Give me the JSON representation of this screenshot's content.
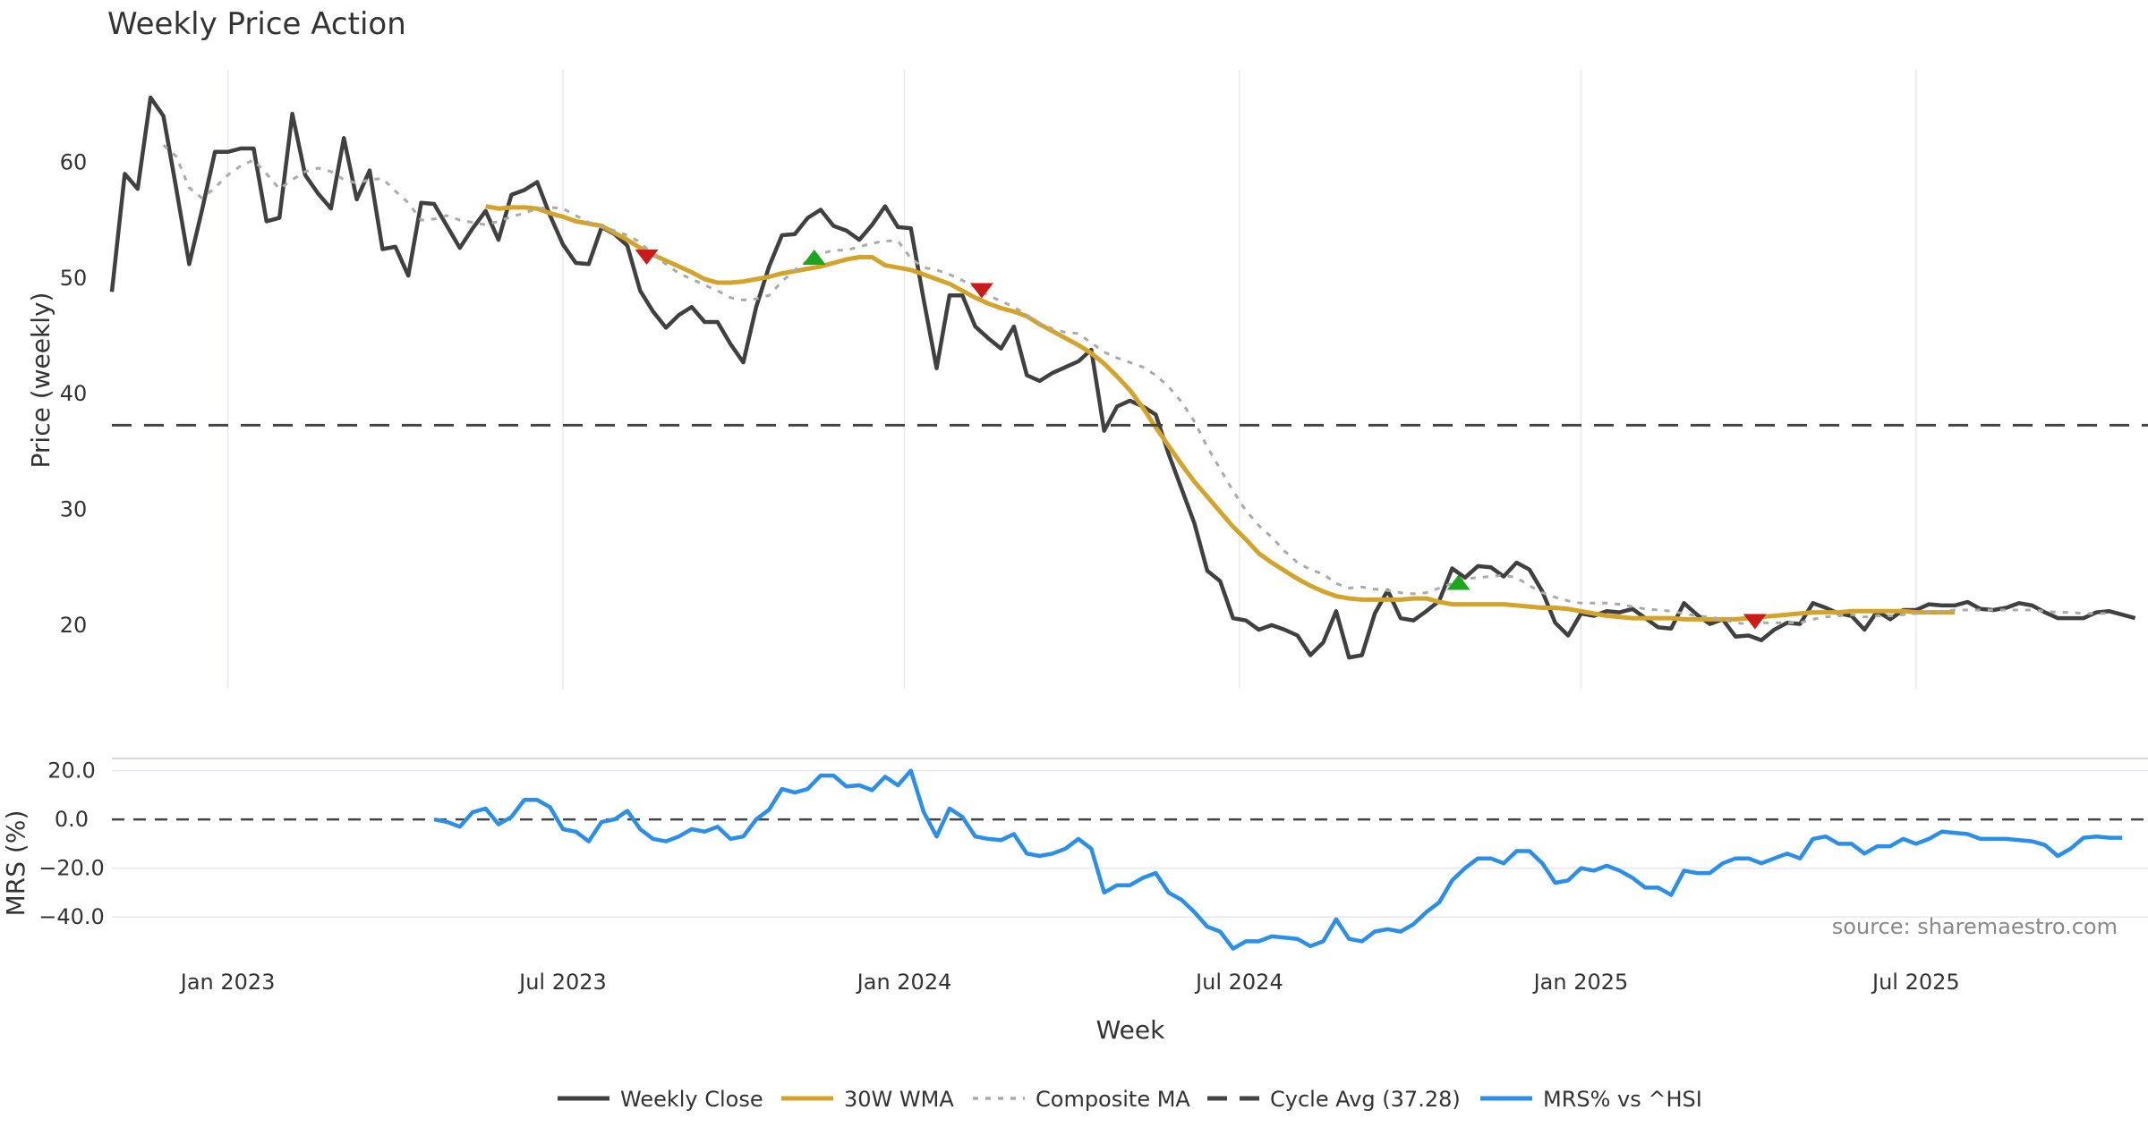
{
  "chart_data": [
    {
      "type": "line",
      "title": "Weekly Price Action",
      "ylabel": "Price (weekly)",
      "xlabel": "Week",
      "ylim": [
        14.5,
        68
      ],
      "yticks": [
        20,
        30,
        40,
        50,
        60
      ],
      "x_tick_labels": [
        "Jan 2023",
        "Jul 2023",
        "Jan 2024",
        "Jul 2024",
        "Jan 2025",
        "Jul 2025"
      ],
      "x_tick_weeks": [
        9,
        35,
        61.5,
        87.5,
        114,
        140
      ],
      "x_start_week": 0,
      "x_end_week": 158,
      "series": [
        {
          "name": "Weekly Close",
          "color": "#404040",
          "style": "solid",
          "start_week": 0,
          "values": [
            48.8,
            59,
            57.7,
            65.6,
            64,
            57.7,
            51.2,
            55.9,
            60.9,
            60.9,
            61.2,
            61.2,
            54.9,
            55.2,
            64.2,
            58.9,
            57.3,
            56,
            62.1,
            56.8,
            59.3,
            52.5,
            52.7,
            50.2,
            56.5,
            56.4,
            54.5,
            52.6,
            54.3,
            55.8,
            53.3,
            57.2,
            57.6,
            58.3,
            55.4,
            52.9,
            51.3,
            51.2,
            54.4,
            53.8,
            52.8,
            48.9,
            47.1,
            45.7,
            46.8,
            47.5,
            46.2,
            46.2,
            44.3,
            42.7,
            47.5,
            51,
            53.7,
            53.8,
            55.2,
            55.9,
            54.5,
            54.1,
            53.3,
            54.6,
            56.2,
            54.4,
            54.3,
            48.1,
            42.2,
            48.5,
            48.5,
            45.8,
            44.8,
            43.9,
            45.8,
            41.6,
            41.1,
            41.8,
            42.3,
            42.8,
            43.8,
            36.8,
            38.9,
            39.4,
            38.9,
            38.2,
            34.8,
            31.8,
            28.8,
            24.7,
            23.8,
            20.6,
            20.4,
            19.6,
            20,
            19.6,
            19.1,
            17.4,
            18.5,
            21.2,
            17.2,
            17.4,
            21,
            23,
            20.6,
            20.4,
            21.2,
            22.1,
            24.9,
            24.1,
            25.1,
            25,
            24.2,
            25.4,
            24.8,
            22.9,
            20.2,
            19.1,
            21,
            20.8,
            21.2,
            21.1,
            21.4,
            20.6,
            19.8,
            19.7,
            21.9,
            20.9,
            20.1,
            20.5,
            19,
            19.1,
            18.7,
            19.6,
            20.2,
            20.1,
            21.9,
            21.5,
            21,
            20.8,
            19.6,
            21.2,
            20.5,
            21.3,
            21.3,
            21.8,
            21.7,
            21.7,
            22,
            21.4,
            21.3,
            21.5,
            21.9,
            21.7,
            21.1,
            20.6,
            20.6,
            20.6,
            21.1,
            21.2,
            20.9,
            20.6
          ]
        },
        {
          "name": "30W WMA",
          "color": "#D4A42A",
          "style": "solid",
          "start_week": 29,
          "values": [
            56.2,
            56,
            56.1,
            56.1,
            56,
            55.6,
            55.3,
            54.9,
            54.7,
            54.5,
            53.9,
            53.3,
            52.6,
            52,
            51.5,
            51,
            50.5,
            49.9,
            49.6,
            49.6,
            49.7,
            49.9,
            50.1,
            50.4,
            50.6,
            50.8,
            51,
            51.3,
            51.6,
            51.8,
            51.8,
            51.1,
            50.9,
            50.7,
            50.3,
            49.9,
            49.5,
            48.9,
            48.3,
            47.8,
            47.4,
            47.1,
            46.7,
            46,
            45.4,
            44.8,
            44.2,
            43.5,
            42.6,
            41.5,
            40.3,
            38.8,
            37.1,
            35.5,
            33.9,
            32.4,
            31.1,
            29.8,
            28.5,
            27.4,
            26.2,
            25.4,
            24.7,
            24,
            23.4,
            22.9,
            22.5,
            22.3,
            22.2,
            22.2,
            22.2,
            22.2,
            22.3,
            22.3,
            22,
            21.8,
            21.8,
            21.8,
            21.8,
            21.8,
            21.7,
            21.6,
            21.5,
            21.5,
            21.4,
            21.2,
            21,
            20.8,
            20.7,
            20.6,
            20.6,
            20.6,
            20.6,
            20.5,
            20.5,
            20.5,
            20.5,
            20.5,
            20.6,
            20.7,
            20.8,
            20.9,
            21,
            21.1,
            21.1,
            21.1,
            21.2,
            21.2,
            21.2,
            21.2,
            21.2,
            21.1,
            21.1,
            21.1,
            21.1
          ]
        },
        {
          "name": "Composite MA",
          "color": "#AAAAAA",
          "style": "dotted",
          "start_week": 4,
          "values": [
            61.5,
            60.5,
            57.8,
            56.9,
            57.8,
            58.9,
            59.7,
            60.2,
            59,
            57.7,
            58.5,
            59.2,
            59.5,
            59.2,
            58.5,
            58.2,
            58.5,
            58.6,
            57.5,
            56.5,
            55,
            55.1,
            55.4,
            55,
            54.8,
            54.6,
            54.9,
            55.3,
            55.6,
            56,
            56.1,
            56,
            55.4,
            54.8,
            54.4,
            54.1,
            53.7,
            53.1,
            52,
            51.2,
            50.4,
            49.9,
            49.4,
            48.9,
            48.3,
            48.1,
            48.2,
            48.5,
            49.7,
            50.7,
            51.5,
            52.1,
            52.4,
            52.4,
            52.7,
            53,
            53.2,
            53.2,
            51.7,
            50.9,
            50.7,
            50.3,
            49.8,
            49.2,
            48.5,
            48,
            47.5,
            46.8,
            46.1,
            45.6,
            45.3,
            45.2,
            44.4,
            43.6,
            43.1,
            42.7,
            42.3,
            41.6,
            40.6,
            39.3,
            37.6,
            35.4,
            33.5,
            31.6,
            29.9,
            28.6,
            27.6,
            26.4,
            25.4,
            24.8,
            24.4,
            23.6,
            23.2,
            23.3,
            23.1,
            23,
            22.8,
            22.7,
            22.8,
            23.2,
            23.6,
            24,
            24.1,
            24.2,
            24.3,
            24.1,
            23.4,
            22.8,
            22.4,
            22.1,
            21.9,
            21.9,
            21.9,
            21.8,
            21.6,
            21.4,
            21.3,
            21.2,
            21,
            20.8,
            20.7,
            20.5,
            20.2,
            20.1,
            20.2,
            20.2,
            20.2,
            20.2,
            20.5,
            20.7,
            20.8,
            20.9,
            20.7,
            20.8,
            20.8,
            20.9,
            21,
            21.1,
            21.2,
            21.3,
            21.3,
            21.3,
            21.3,
            21.3,
            21.3,
            21.3,
            21.2,
            21.1,
            21.1,
            21,
            21,
            21
          ]
        },
        {
          "name": "Cycle Avg (37.28)",
          "color": "#444444",
          "style": "dashed",
          "constant": 37.28
        }
      ],
      "markers": [
        {
          "type": "sell",
          "week": 41.5,
          "value": 51.8,
          "color": "#CC1A1A"
        },
        {
          "type": "buy",
          "week": 54.5,
          "value": 51.8,
          "color": "#1DA51D"
        },
        {
          "type": "sell",
          "week": 67.5,
          "value": 48.9,
          "color": "#CC1A1A"
        },
        {
          "type": "buy",
          "week": 104.5,
          "value": 23.7,
          "color": "#1DA51D"
        },
        {
          "type": "sell",
          "week": 127.5,
          "value": 20.3,
          "color": "#CC1A1A"
        }
      ]
    },
    {
      "type": "line",
      "ylabel": "MRS (%)",
      "ylim": [
        -55,
        25
      ],
      "yticks": [
        20,
        0,
        -20,
        -40
      ],
      "ytick_labels": [
        "20.0",
        "0.0",
        "−20.0",
        "−40.0"
      ],
      "zero_line": true,
      "series": [
        {
          "name": "MRS% vs ^HSI",
          "color": "#2B8FE8",
          "style": "solid",
          "start_week": 25,
          "values": [
            0,
            -1,
            -3,
            3,
            4.5,
            -2,
            1,
            8,
            8,
            5,
            -4,
            -5,
            -9,
            -1,
            0,
            3.5,
            -4,
            -8,
            -9,
            -7,
            -4,
            -5,
            -3,
            -8,
            -7,
            0,
            4,
            12.5,
            11,
            12.5,
            18,
            18,
            13.5,
            14,
            12,
            17.5,
            14,
            20,
            3,
            -7,
            4.5,
            1,
            -7,
            -8,
            -8.5,
            -6,
            -14,
            -15,
            -14,
            -12,
            -8,
            -12,
            -30,
            -27,
            -27,
            -24,
            -22,
            -30,
            -33,
            -38,
            -44,
            -46,
            -53,
            -50,
            -50,
            -48,
            -48.5,
            -49,
            -52,
            -50,
            -41,
            -49,
            -50,
            -46,
            -45,
            -46,
            -43,
            -38,
            -34,
            -25,
            -20,
            -16,
            -16,
            -18,
            -13,
            -13,
            -18,
            -26,
            -25,
            -20,
            -21,
            -19,
            -21,
            -24,
            -28,
            -28,
            -31,
            -21,
            -22,
            -22,
            -18,
            -16,
            -16,
            -18,
            -16,
            -14,
            -16,
            -8,
            -7,
            -10,
            -10,
            -14,
            -11,
            -11,
            -8,
            -10,
            -8,
            -5,
            -5.5,
            -6,
            -8,
            -8,
            -8,
            -8.5,
            -9,
            -10.5,
            -15,
            -12,
            -7.5,
            -7,
            -7.5,
            -7.5
          ]
        }
      ]
    }
  ],
  "source_label": "source: sharemaestro.com",
  "legend": [
    {
      "label": "Weekly Close",
      "color": "#404040",
      "style": "solid"
    },
    {
      "label": "30W WMA",
      "color": "#D4A42A",
      "style": "solid"
    },
    {
      "label": "Composite MA",
      "color": "#AAAAAA",
      "style": "dotted"
    },
    {
      "label": "Cycle Avg (37.28)",
      "color": "#444444",
      "style": "dashed"
    },
    {
      "label": "MRS% vs ^HSI",
      "color": "#2B8FE8",
      "style": "solid"
    }
  ]
}
